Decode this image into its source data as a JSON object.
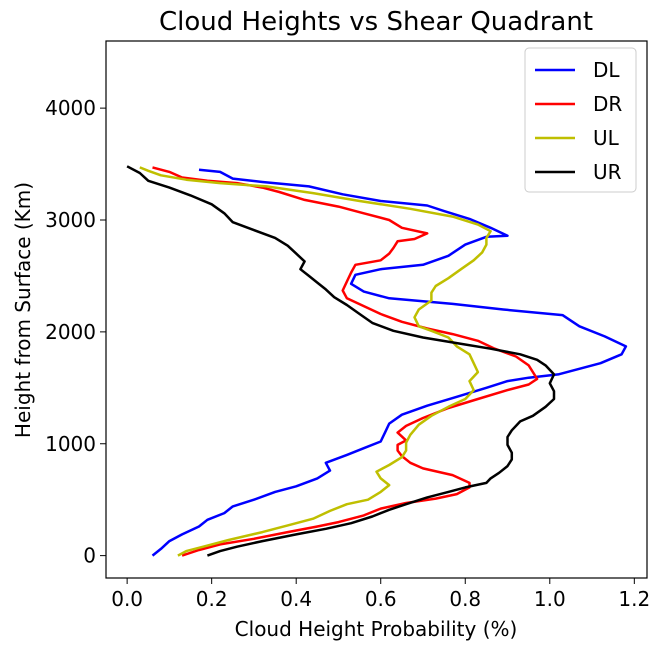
{
  "chart_data": {
    "type": "line",
    "title": "Cloud Heights vs Shear Quadrant",
    "xlabel": "Cloud Height Probability (%)",
    "ylabel": "Height from Surface (Km)",
    "xlim": [
      -0.05,
      1.23
    ],
    "ylim": [
      -200,
      4600
    ],
    "xticks": [
      0.0,
      0.2,
      0.4,
      0.6,
      0.8,
      1.0,
      1.2
    ],
    "xtick_labels": [
      "0.0",
      "0.2",
      "0.4",
      "0.6",
      "0.8",
      "1.0",
      "1.2"
    ],
    "yticks": [
      0,
      1000,
      2000,
      3000,
      4000
    ],
    "ytick_labels": [
      "0",
      "1000",
      "2000",
      "3000",
      "4000"
    ],
    "grid": false,
    "legend_position": "upper-right",
    "series": [
      {
        "name": "DL",
        "color": "#0000ff",
        "points": [
          [
            0.06,
            0
          ],
          [
            0.08,
            60
          ],
          [
            0.1,
            130
          ],
          [
            0.13,
            190
          ],
          [
            0.17,
            260
          ],
          [
            0.19,
            320
          ],
          [
            0.23,
            380
          ],
          [
            0.25,
            440
          ],
          [
            0.3,
            500
          ],
          [
            0.35,
            570
          ],
          [
            0.4,
            620
          ],
          [
            0.45,
            690
          ],
          [
            0.48,
            760
          ],
          [
            0.47,
            830
          ],
          [
            0.52,
            900
          ],
          [
            0.56,
            960
          ],
          [
            0.6,
            1020
          ],
          [
            0.61,
            1100
          ],
          [
            0.62,
            1180
          ],
          [
            0.65,
            1260
          ],
          [
            0.71,
            1340
          ],
          [
            0.78,
            1420
          ],
          [
            0.85,
            1500
          ],
          [
            0.9,
            1560
          ],
          [
            0.95,
            1590
          ],
          [
            1.02,
            1620
          ],
          [
            1.12,
            1720
          ],
          [
            1.17,
            1800
          ],
          [
            1.18,
            1870
          ],
          [
            1.13,
            1960
          ],
          [
            1.07,
            2050
          ],
          [
            1.03,
            2150
          ],
          [
            0.89,
            2200
          ],
          [
            0.77,
            2250
          ],
          [
            0.62,
            2300
          ],
          [
            0.56,
            2360
          ],
          [
            0.53,
            2430
          ],
          [
            0.54,
            2510
          ],
          [
            0.6,
            2560
          ],
          [
            0.7,
            2600
          ],
          [
            0.76,
            2680
          ],
          [
            0.8,
            2780
          ],
          [
            0.85,
            2850
          ],
          [
            0.9,
            2860
          ],
          [
            0.86,
            2930
          ],
          [
            0.81,
            3010
          ],
          [
            0.75,
            3080
          ],
          [
            0.71,
            3130
          ],
          [
            0.6,
            3170
          ],
          [
            0.51,
            3230
          ],
          [
            0.43,
            3300
          ],
          [
            0.32,
            3340
          ],
          [
            0.25,
            3370
          ],
          [
            0.22,
            3430
          ],
          [
            0.17,
            3450
          ]
        ]
      },
      {
        "name": "DR",
        "color": "#ff0000",
        "points": [
          [
            0.13,
            0
          ],
          [
            0.17,
            50
          ],
          [
            0.22,
            100
          ],
          [
            0.3,
            150
          ],
          [
            0.38,
            210
          ],
          [
            0.45,
            260
          ],
          [
            0.5,
            300
          ],
          [
            0.56,
            360
          ],
          [
            0.6,
            420
          ],
          [
            0.66,
            470
          ],
          [
            0.73,
            510
          ],
          [
            0.78,
            550
          ],
          [
            0.81,
            610
          ],
          [
            0.81,
            650
          ],
          [
            0.77,
            720
          ],
          [
            0.7,
            780
          ],
          [
            0.67,
            830
          ],
          [
            0.65,
            890
          ],
          [
            0.64,
            940
          ],
          [
            0.64,
            990
          ],
          [
            0.66,
            1030
          ],
          [
            0.64,
            1100
          ],
          [
            0.66,
            1160
          ],
          [
            0.7,
            1230
          ],
          [
            0.76,
            1320
          ],
          [
            0.83,
            1400
          ],
          [
            0.9,
            1480
          ],
          [
            0.95,
            1530
          ],
          [
            0.97,
            1580
          ],
          [
            0.96,
            1640
          ],
          [
            0.95,
            1700
          ],
          [
            0.92,
            1780
          ],
          [
            0.87,
            1850
          ],
          [
            0.83,
            1920
          ],
          [
            0.77,
            1980
          ],
          [
            0.71,
            2030
          ],
          [
            0.65,
            2090
          ],
          [
            0.6,
            2160
          ],
          [
            0.56,
            2230
          ],
          [
            0.52,
            2300
          ],
          [
            0.51,
            2370
          ],
          [
            0.52,
            2450
          ],
          [
            0.53,
            2530
          ],
          [
            0.54,
            2600
          ],
          [
            0.6,
            2640
          ],
          [
            0.62,
            2700
          ],
          [
            0.63,
            2750
          ],
          [
            0.64,
            2810
          ],
          [
            0.68,
            2830
          ],
          [
            0.71,
            2880
          ],
          [
            0.65,
            2930
          ],
          [
            0.62,
            3000
          ],
          [
            0.56,
            3060
          ],
          [
            0.5,
            3120
          ],
          [
            0.42,
            3180
          ],
          [
            0.36,
            3250
          ],
          [
            0.32,
            3290
          ],
          [
            0.26,
            3330
          ],
          [
            0.19,
            3350
          ],
          [
            0.13,
            3380
          ],
          [
            0.1,
            3430
          ],
          [
            0.06,
            3470
          ]
        ]
      },
      {
        "name": "UL",
        "color": "#bfbf00",
        "points": [
          [
            0.12,
            0
          ],
          [
            0.14,
            40
          ],
          [
            0.18,
            80
          ],
          [
            0.24,
            140
          ],
          [
            0.32,
            210
          ],
          [
            0.38,
            270
          ],
          [
            0.44,
            330
          ],
          [
            0.48,
            400
          ],
          [
            0.52,
            460
          ],
          [
            0.57,
            500
          ],
          [
            0.6,
            570
          ],
          [
            0.62,
            630
          ],
          [
            0.6,
            690
          ],
          [
            0.59,
            750
          ],
          [
            0.62,
            810
          ],
          [
            0.65,
            880
          ],
          [
            0.66,
            940
          ],
          [
            0.66,
            1010
          ],
          [
            0.67,
            1080
          ],
          [
            0.69,
            1170
          ],
          [
            0.72,
            1250
          ],
          [
            0.76,
            1330
          ],
          [
            0.8,
            1400
          ],
          [
            0.82,
            1480
          ],
          [
            0.81,
            1560
          ],
          [
            0.83,
            1640
          ],
          [
            0.82,
            1720
          ],
          [
            0.81,
            1800
          ],
          [
            0.78,
            1870
          ],
          [
            0.76,
            1950
          ],
          [
            0.72,
            2010
          ],
          [
            0.69,
            2050
          ],
          [
            0.68,
            2130
          ],
          [
            0.69,
            2200
          ],
          [
            0.72,
            2280
          ],
          [
            0.72,
            2350
          ],
          [
            0.73,
            2410
          ],
          [
            0.76,
            2480
          ],
          [
            0.79,
            2560
          ],
          [
            0.82,
            2640
          ],
          [
            0.84,
            2710
          ],
          [
            0.85,
            2780
          ],
          [
            0.85,
            2840
          ],
          [
            0.86,
            2900
          ],
          [
            0.83,
            2960
          ],
          [
            0.77,
            3030
          ],
          [
            0.67,
            3100
          ],
          [
            0.55,
            3170
          ],
          [
            0.44,
            3240
          ],
          [
            0.33,
            3300
          ],
          [
            0.22,
            3330
          ],
          [
            0.14,
            3360
          ],
          [
            0.08,
            3400
          ],
          [
            0.05,
            3440
          ],
          [
            0.03,
            3470
          ]
        ]
      },
      {
        "name": "UR",
        "color": "#000000",
        "points": [
          [
            0.19,
            0
          ],
          [
            0.22,
            40
          ],
          [
            0.26,
            80
          ],
          [
            0.32,
            130
          ],
          [
            0.4,
            190
          ],
          [
            0.47,
            240
          ],
          [
            0.53,
            290
          ],
          [
            0.58,
            350
          ],
          [
            0.62,
            410
          ],
          [
            0.66,
            460
          ],
          [
            0.71,
            520
          ],
          [
            0.76,
            570
          ],
          [
            0.8,
            610
          ],
          [
            0.85,
            650
          ],
          [
            0.86,
            690
          ],
          [
            0.88,
            740
          ],
          [
            0.9,
            800
          ],
          [
            0.91,
            860
          ],
          [
            0.91,
            920
          ],
          [
            0.9,
            990
          ],
          [
            0.9,
            1060
          ],
          [
            0.91,
            1120
          ],
          [
            0.93,
            1200
          ],
          [
            0.96,
            1250
          ],
          [
            0.99,
            1330
          ],
          [
            1.01,
            1400
          ],
          [
            1.01,
            1470
          ],
          [
            1.0,
            1540
          ],
          [
            1.01,
            1620
          ],
          [
            0.99,
            1700
          ],
          [
            0.97,
            1750
          ],
          [
            0.93,
            1800
          ],
          [
            0.86,
            1850
          ],
          [
            0.78,
            1900
          ],
          [
            0.7,
            1950
          ],
          [
            0.63,
            2010
          ],
          [
            0.58,
            2080
          ],
          [
            0.55,
            2160
          ],
          [
            0.52,
            2240
          ],
          [
            0.49,
            2310
          ],
          [
            0.47,
            2380
          ],
          [
            0.45,
            2440
          ],
          [
            0.43,
            2500
          ],
          [
            0.41,
            2560
          ],
          [
            0.42,
            2630
          ],
          [
            0.4,
            2700
          ],
          [
            0.38,
            2770
          ],
          [
            0.35,
            2840
          ],
          [
            0.3,
            2910
          ],
          [
            0.25,
            2980
          ],
          [
            0.23,
            3060
          ],
          [
            0.2,
            3140
          ],
          [
            0.15,
            3220
          ],
          [
            0.1,
            3290
          ],
          [
            0.05,
            3350
          ],
          [
            0.03,
            3420
          ],
          [
            0.0,
            3480
          ]
        ]
      }
    ]
  }
}
